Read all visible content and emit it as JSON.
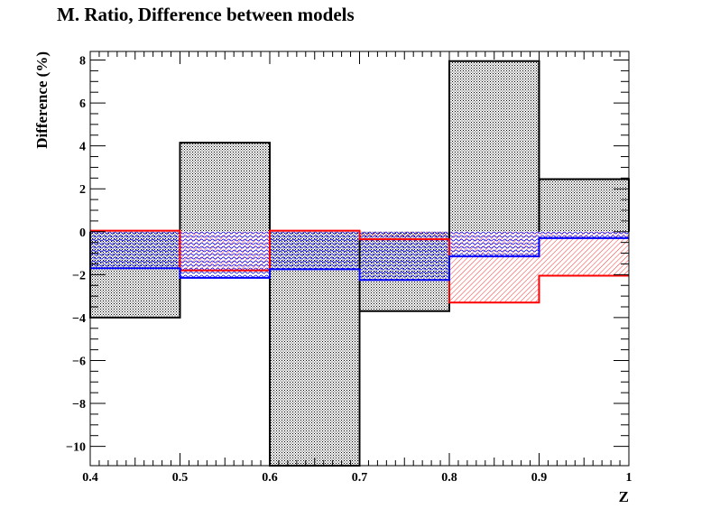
{
  "chart_data": {
    "type": "step",
    "title": "M. Ratio, Difference between models",
    "xlabel": "Z",
    "ylabel": "Difference (%)",
    "xlim": [
      0.4,
      1.0
    ],
    "ylim": [
      -10.9,
      8.4
    ],
    "bin_edges": [
      0.4,
      0.5,
      0.6,
      0.7,
      0.8,
      0.9,
      1.0
    ],
    "x_ticks": [
      "0.4",
      "0.5",
      "0.6",
      "0.7",
      "0.8",
      "0.9",
      "1"
    ],
    "y_ticks": [
      "8",
      "6",
      "4",
      "2",
      "0",
      "−2",
      "−4",
      "−6",
      "−8",
      "−10"
    ],
    "y_tick_values": [
      8,
      6,
      4,
      2,
      0,
      -2,
      -4,
      -6,
      -8,
      -10
    ],
    "series": [
      {
        "color": "#000000",
        "fill": "dots",
        "values": [
          -4.0,
          4.15,
          -10.9,
          -3.7,
          7.95,
          2.45
        ]
      },
      {
        "color": "#ff0000",
        "fill": "hatch",
        "values": [
          0.05,
          -1.8,
          0.05,
          -0.35,
          -3.3,
          -2.05
        ]
      },
      {
        "color": "#0000ff",
        "fill": "waves",
        "values": [
          -1.7,
          -2.15,
          -1.75,
          -2.25,
          -1.15,
          -0.3
        ]
      }
    ],
    "grid": false,
    "legend": "none"
  }
}
